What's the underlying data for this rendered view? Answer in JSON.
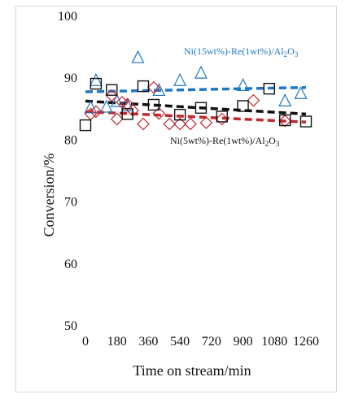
{
  "chart_data": {
    "type": "scatter",
    "xlabel": "Time on stream/min",
    "ylabel": "Conversion/%",
    "xlim": [
      0,
      1260
    ],
    "ylim": [
      50,
      100
    ],
    "xticks": [
      "0",
      "180",
      "360",
      "540",
      "720",
      "900",
      "1080",
      "1260"
    ],
    "yticks": [
      "50",
      "60",
      "70",
      "80",
      "90",
      "100"
    ],
    "grid": false,
    "legend": "none",
    "series": [
      {
        "name": "Ni(15wt%)-Re(1wt%)/Al2O3",
        "label_text": "Ni(15wt%)-Re(1wt%)/Al",
        "label_sub": "2",
        "label_text2": "O",
        "label_sub2": "3",
        "marker": "triangle",
        "color": "#1f77c4",
        "points": [
          {
            "x": 30,
            "y": 85.2
          },
          {
            "x": 60,
            "y": 89.6
          },
          {
            "x": 120,
            "y": 85.3
          },
          {
            "x": 180,
            "y": 86.2
          },
          {
            "x": 240,
            "y": 85.5
          },
          {
            "x": 300,
            "y": 93.3
          },
          {
            "x": 420,
            "y": 88.0
          },
          {
            "x": 540,
            "y": 89.6
          },
          {
            "x": 660,
            "y": 90.8
          },
          {
            "x": 900,
            "y": 88.8
          },
          {
            "x": 1140,
            "y": 86.3
          },
          {
            "x": 1230,
            "y": 87.5
          }
        ],
        "trend": {
          "style": "dashed",
          "color": "#1f77c4",
          "y_start": 87.8,
          "y_end": 88.5
        }
      },
      {
        "name": "Ni(5wt%)-Re(1wt%)/Al2O3",
        "label_text": "Ni(5wt%)-Re(1wt%)/Al",
        "label_sub": "2",
        "label_text2": "O",
        "label_sub2": "3",
        "marker": "diamond",
        "color": "#c0282d",
        "points": [
          {
            "x": 30,
            "y": 84.2
          },
          {
            "x": 60,
            "y": 84.6
          },
          {
            "x": 150,
            "y": 87.2
          },
          {
            "x": 180,
            "y": 83.4
          },
          {
            "x": 210,
            "y": 86.1
          },
          {
            "x": 240,
            "y": 85.8
          },
          {
            "x": 270,
            "y": 84.8
          },
          {
            "x": 330,
            "y": 82.6
          },
          {
            "x": 390,
            "y": 88.5
          },
          {
            "x": 420,
            "y": 84.3
          },
          {
            "x": 480,
            "y": 82.6
          },
          {
            "x": 540,
            "y": 82.6
          },
          {
            "x": 600,
            "y": 82.6
          },
          {
            "x": 690,
            "y": 82.8
          },
          {
            "x": 780,
            "y": 83.4
          },
          {
            "x": 960,
            "y": 86.4
          },
          {
            "x": 1140,
            "y": 83.1
          }
        ],
        "trend": {
          "style": "dashed",
          "color": "#c0282d",
          "y_start": 84.6,
          "y_end": 82.9
        }
      },
      {
        "name": "squares",
        "marker": "square",
        "color": "#111111",
        "points": [
          {
            "x": 0,
            "y": 82.4
          },
          {
            "x": 60,
            "y": 89.1
          },
          {
            "x": 150,
            "y": 88.1
          },
          {
            "x": 240,
            "y": 84.2
          },
          {
            "x": 330,
            "y": 88.7
          },
          {
            "x": 390,
            "y": 85.7
          },
          {
            "x": 540,
            "y": 84.1
          },
          {
            "x": 660,
            "y": 85.2
          },
          {
            "x": 780,
            "y": 83.8
          },
          {
            "x": 900,
            "y": 85.5
          },
          {
            "x": 1050,
            "y": 88.3
          },
          {
            "x": 1140,
            "y": 83.2
          },
          {
            "x": 1260,
            "y": 83.0
          }
        ],
        "trend": {
          "style": "dashed",
          "color": "#111111",
          "y_start": 86.3,
          "y_end": 84.2
        }
      }
    ]
  }
}
